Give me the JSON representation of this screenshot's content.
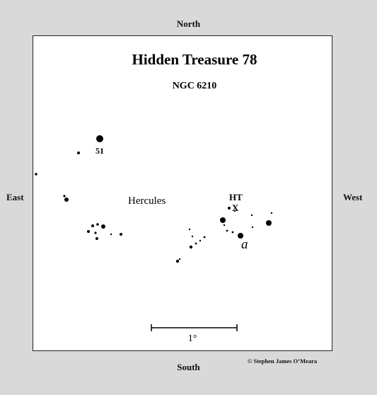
{
  "compass": {
    "north": "North",
    "south": "South",
    "east": "East",
    "west": "West"
  },
  "chart": {
    "title": "Hidden Treasure 78",
    "subtitle": "NGC 6210",
    "constellation": "Hercules",
    "target_label": "HT",
    "target_marker": "X",
    "star_labels": {
      "s51": "51",
      "alpha": "a"
    },
    "scale_label": "1°"
  },
  "credit": "© Stephen James O’Meara"
}
